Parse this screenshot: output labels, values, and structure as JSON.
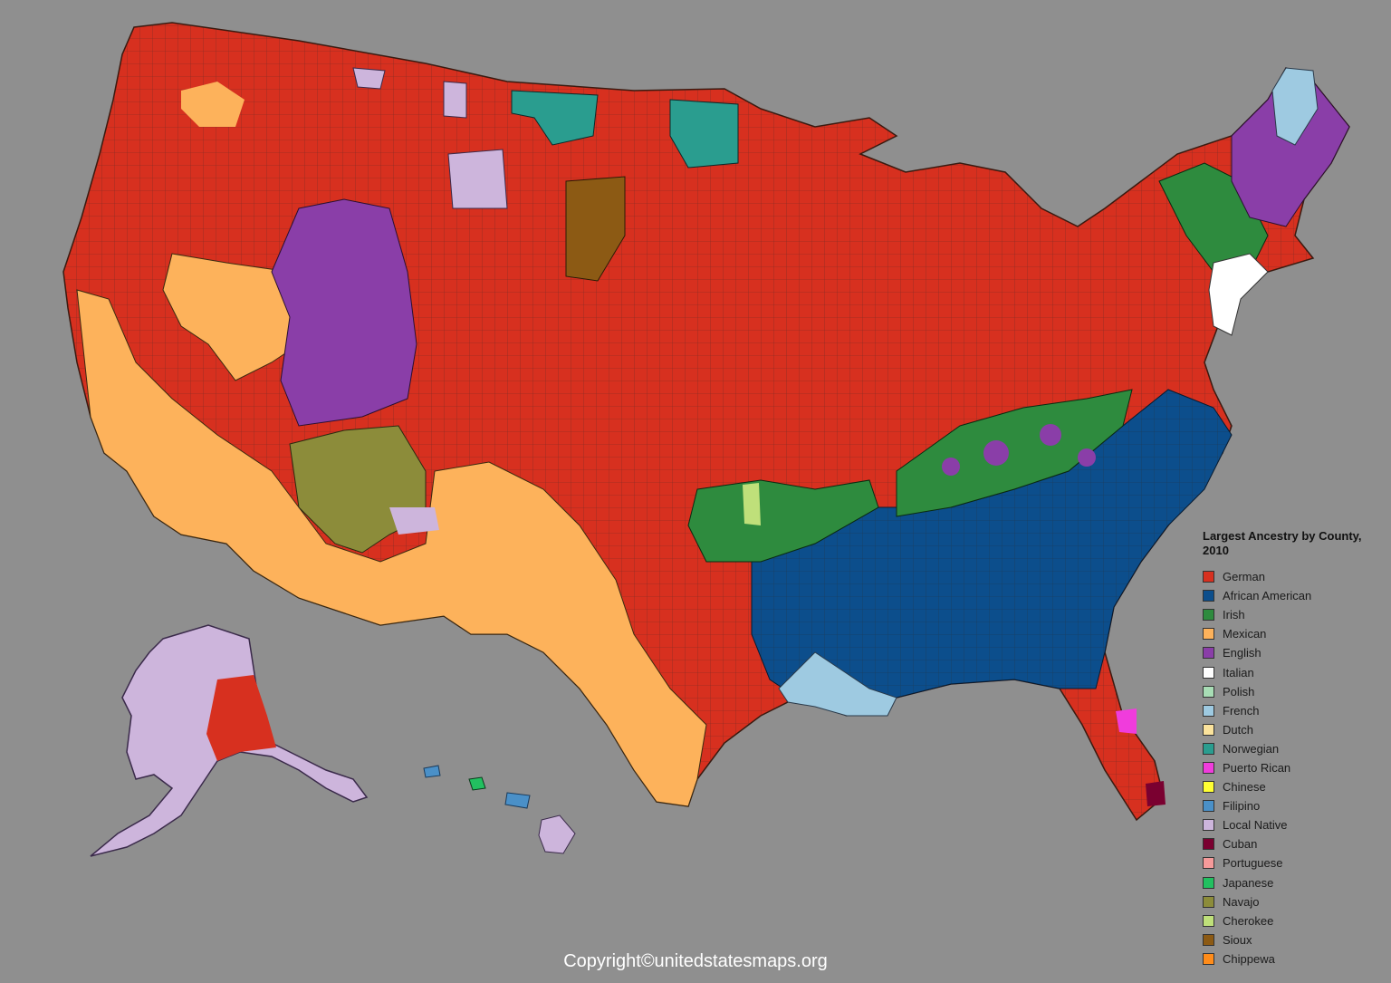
{
  "legend": {
    "title": "Largest Ancestry by County, 2010",
    "items": [
      {
        "label": "German",
        "color": "#d7301f"
      },
      {
        "label": "African American",
        "color": "#0c4e8c"
      },
      {
        "label": "Irish",
        "color": "#2e8b3e"
      },
      {
        "label": "Mexican",
        "color": "#fdb25b"
      },
      {
        "label": "English",
        "color": "#8a3ea8"
      },
      {
        "label": "Italian",
        "color": "#ffffff"
      },
      {
        "label": "Polish",
        "color": "#a8ddb5"
      },
      {
        "label": "French",
        "color": "#9ecae1"
      },
      {
        "label": "Dutch",
        "color": "#fbe39c"
      },
      {
        "label": "Norwegian",
        "color": "#2a9d8f"
      },
      {
        "label": "Puerto Rican",
        "color": "#f03cdc"
      },
      {
        "label": "Chinese",
        "color": "#ffff33"
      },
      {
        "label": "Filipino",
        "color": "#4a90c8"
      },
      {
        "label": "Local Native",
        "color": "#cdb5dc"
      },
      {
        "label": "Cuban",
        "color": "#7a0030"
      },
      {
        "label": "Portuguese",
        "color": "#f59a9a"
      },
      {
        "label": "Japanese",
        "color": "#22c060"
      },
      {
        "label": "Navajo",
        "color": "#8c8c3a"
      },
      {
        "label": "Cherokee",
        "color": "#bfe07a"
      },
      {
        "label": "Sioux",
        "color": "#8c5a14"
      },
      {
        "label": "Chippewa",
        "color": "#ff8c1a"
      }
    ]
  },
  "copyright": "Copyright©unitedstatesmaps.org"
}
